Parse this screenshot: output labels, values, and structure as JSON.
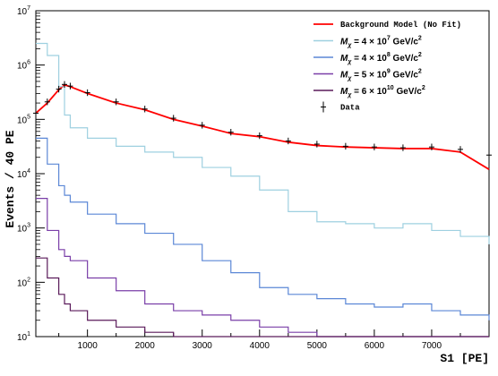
{
  "chart_data": {
    "type": "line",
    "title": "",
    "xlabel": "S1 [PE]",
    "ylabel": "Events / 40 PE",
    "xlim": [
      100,
      8000
    ],
    "ylim_log10": [
      1,
      7
    ],
    "y_log": true,
    "x_ticks": [
      "1000",
      "2000",
      "3000",
      "4000",
      "5000",
      "6000",
      "7000"
    ],
    "y_ticks": [
      {
        "base": "10",
        "exp": "1"
      },
      {
        "base": "10",
        "exp": "2"
      },
      {
        "base": "10",
        "exp": "3"
      },
      {
        "base": "10",
        "exp": "4"
      },
      {
        "base": "10",
        "exp": "5"
      },
      {
        "base": "10",
        "exp": "6"
      },
      {
        "base": "10",
        "exp": "7"
      }
    ],
    "grid": false,
    "legend_position": "top-right",
    "x": [
      100,
      300,
      500,
      600,
      700,
      1000,
      1500,
      2000,
      2500,
      3000,
      3500,
      4000,
      4500,
      5000,
      5500,
      6000,
      6500,
      7000,
      7500,
      8000
    ],
    "series": [
      {
        "id": "background",
        "name": "Background Model (No Fit)",
        "color": "#ff0000",
        "style": "line",
        "values": [
          130000,
          200000,
          350000,
          430000,
          400000,
          300000,
          200000,
          150000,
          100000,
          75000,
          55000,
          48000,
          38000,
          33000,
          31000,
          30000,
          29000,
          29000,
          25000,
          12000
        ]
      },
      {
        "id": "m4e7",
        "name_prefix": "M",
        "name_sub": "χ",
        "name_mid": "= 4 × 10",
        "name_exp": "7",
        "name_suffix": " GeV/c",
        "name_exp2": "2",
        "color": "#9ed0e0",
        "style": "step",
        "values": [
          2500000,
          1500000,
          400000,
          120000,
          70000,
          45000,
          32000,
          25000,
          20000,
          13000,
          9000,
          5000,
          2000,
          1300,
          1200,
          1000,
          1200,
          900,
          700,
          500
        ]
      },
      {
        "id": "m4e8",
        "name_prefix": "M",
        "name_sub": "χ",
        "name_mid": "= 4 × 10",
        "name_exp": "8",
        "name_suffix": " GeV/c",
        "name_exp2": "2",
        "color": "#5b87d6",
        "style": "step",
        "values": [
          45000,
          15000,
          6000,
          4000,
          3000,
          1800,
          1200,
          800,
          500,
          250,
          150,
          80,
          60,
          50,
          40,
          35,
          40,
          30,
          25,
          20
        ]
      },
      {
        "id": "m5e9",
        "name_prefix": "M",
        "name_sub": "χ",
        "name_mid": "= 5 × 10",
        "name_exp": "9",
        "name_suffix": " GeV/c",
        "name_exp2": "2",
        "color": "#7a3fa8",
        "style": "step",
        "values": [
          3500,
          900,
          400,
          300,
          250,
          120,
          70,
          40,
          30,
          25,
          20,
          15,
          12,
          10,
          10,
          10,
          10,
          10,
          10,
          10
        ]
      },
      {
        "id": "m6e10",
        "name_prefix": "M",
        "name_sub": "χ",
        "name_mid": "= 6 × 10",
        "name_exp": "10",
        "name_suffix": " GeV/c",
        "name_exp2": "2",
        "color": "#5a1a5a",
        "style": "step",
        "values": [
          280,
          120,
          60,
          40,
          30,
          20,
          15,
          12,
          10,
          10,
          10,
          10,
          10,
          10,
          10,
          10,
          10,
          10,
          10,
          10
        ]
      },
      {
        "id": "data",
        "name": "Data",
        "color": "#000000",
        "style": "errorbar",
        "values": [
          130000,
          210000,
          360000,
          440000,
          410000,
          310000,
          210000,
          155000,
          105000,
          78000,
          58000,
          50000,
          40000,
          35000,
          32000,
          31000,
          30000,
          31000,
          28000,
          22000
        ]
      }
    ]
  }
}
